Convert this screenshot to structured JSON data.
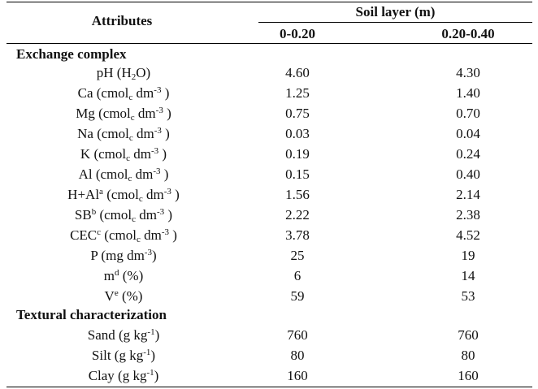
{
  "header": {
    "attributes": "Attributes",
    "soil_layer": "Soil layer (m)",
    "col1": "0-0.20",
    "col2": "0.20-0.40"
  },
  "sections": {
    "exchange": "Exchange complex",
    "textural": "Textural characterization"
  },
  "rows": [
    {
      "main": "pH (H",
      "sub": "2",
      "tail": "O)",
      "v1": "4.60",
      "v2": "4.30"
    },
    {
      "main": "Ca (cmol",
      "sub": "c",
      "tail": " dm",
      "sup": "-3",
      "end": " )",
      "v1": "1.25",
      "v2": "1.40"
    },
    {
      "main": "Mg (cmol",
      "sub": "c",
      "tail": " dm",
      "sup": "-3",
      "end": " )",
      "v1": "0.75",
      "v2": "0.70"
    },
    {
      "main": "Na (cmol",
      "sub": "c",
      "tail": " dm",
      "sup": "-3",
      "end": " )",
      "v1": "0.03",
      "v2": "0.04"
    },
    {
      "main": "K (cmol",
      "sub": "c",
      "tail": " dm",
      "sup": "-3",
      "end": " )",
      "v1": "0.19",
      "v2": "0.24"
    },
    {
      "main": "Al (cmol",
      "sub": "c",
      "tail": " dm",
      "sup": "-3",
      "end": " )",
      "v1": "0.15",
      "v2": "0.40"
    },
    {
      "main": "H+Al",
      "sup0": "a",
      "mid": " (cmol",
      "sub": "c",
      "tail": " dm",
      "sup": "-3",
      "end": " )",
      "v1": "1.56",
      "v2": "2.14"
    },
    {
      "main": "SB",
      "sup0": "b",
      "mid": " (cmol",
      "sub": "c",
      "tail": " dm",
      "sup": "-3",
      "end": " )",
      "v1": "2.22",
      "v2": "2.38"
    },
    {
      "main": "CEC",
      "sup0": "c",
      "mid": " (cmol",
      "sub": "c",
      "tail": " dm",
      "sup": "-3",
      "end": " )",
      "v1": "3.78",
      "v2": "4.52"
    },
    {
      "main": "P (mg dm",
      "sup": "-3",
      "end": ")",
      "v1": "25",
      "v2": "19"
    },
    {
      "main": "m",
      "sup0": "d",
      "mid": " (%)",
      "v1": "6",
      "v2": "14"
    },
    {
      "main": "V",
      "sup0": "e",
      "mid": " (%)",
      "v1": "59",
      "v2": "53"
    },
    {
      "main": "Sand (g kg",
      "sup": "-1",
      "end": ")",
      "v1": "760",
      "v2": "760"
    },
    {
      "main": "Silt (g kg",
      "sup": "-1",
      "end": ")",
      "v1": "80",
      "v2": "80"
    },
    {
      "main": "Clay (g kg",
      "sup": "-1",
      "end": ")",
      "v1": "160",
      "v2": "160"
    }
  ]
}
